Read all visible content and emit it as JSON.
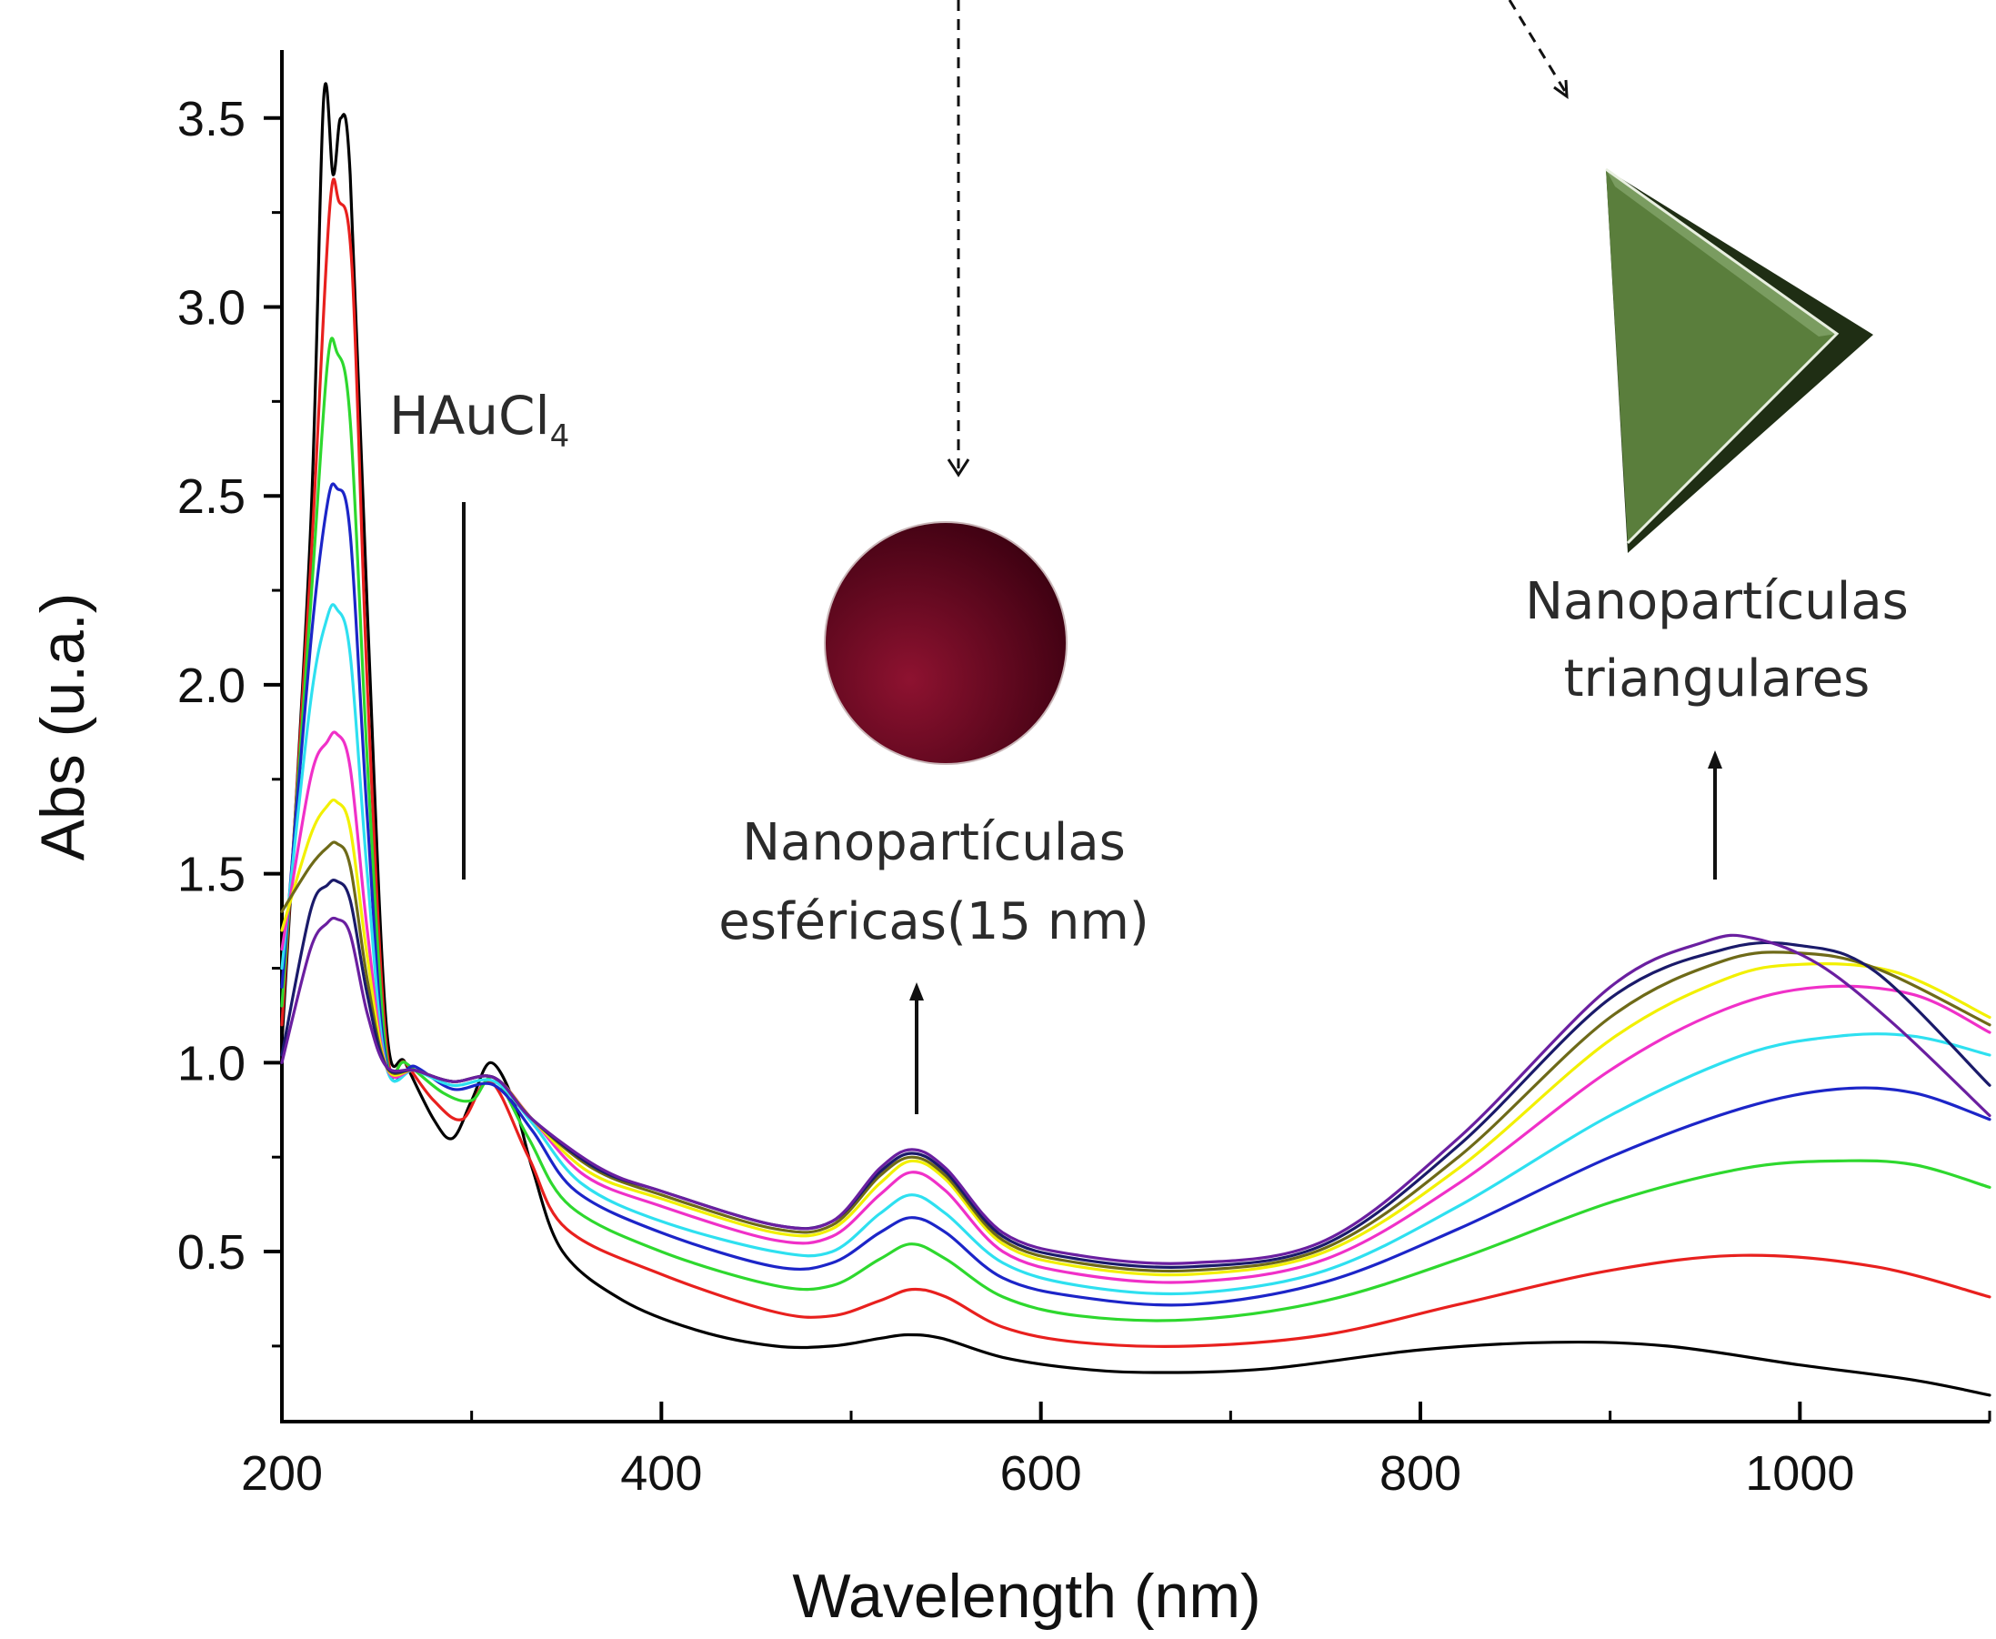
{
  "chart_data": {
    "type": "line",
    "xlabel": "Wavelength (nm)",
    "ylabel": "Abs (u.a.)",
    "xlim": [
      200,
      1100
    ],
    "ylim": [
      0.05,
      3.68
    ],
    "x_ticks": [
      200,
      400,
      600,
      800,
      1000
    ],
    "x_tick_labels": [
      "200",
      "400",
      "600",
      "800",
      "1000"
    ],
    "x_minor_ticks": [
      300,
      500,
      700,
      900,
      1100
    ],
    "y_ticks": [
      0.5,
      1.0,
      1.5,
      2.0,
      2.5,
      3.0,
      3.5
    ],
    "y_tick_labels": [
      "0.5",
      "1.0",
      "1.5",
      "2.0",
      "2.5",
      "3.0",
      "3.5"
    ],
    "y_minor_ticks": [
      0.25,
      0.75,
      1.25,
      1.75,
      2.25,
      2.75,
      3.25
    ],
    "grid": false,
    "legend": "none",
    "colors": {
      "sphere_dark": "#3a0010",
      "sphere_light": "#8e1230",
      "triangle_face": "#5a7e3c",
      "triangle_dark": "#1f2e14",
      "triangle_light": "#7a9c60"
    },
    "series": [
      {
        "color": "#000000",
        "values": [
          [
            200,
            1.05
          ],
          [
            215,
            2.4
          ],
          [
            222,
            3.55
          ],
          [
            227,
            3.35
          ],
          [
            231,
            3.5
          ],
          [
            236,
            3.35
          ],
          [
            245,
            2.2
          ],
          [
            255,
            1.1
          ],
          [
            265,
            1.0
          ],
          [
            280,
            0.85
          ],
          [
            290,
            0.8
          ],
          [
            300,
            0.9
          ],
          [
            310,
            1.0
          ],
          [
            322,
            0.9
          ],
          [
            332,
            0.72
          ],
          [
            348,
            0.5
          ],
          [
            380,
            0.37
          ],
          [
            420,
            0.29
          ],
          [
            460,
            0.25
          ],
          [
            490,
            0.25
          ],
          [
            515,
            0.27
          ],
          [
            530,
            0.28
          ],
          [
            548,
            0.27
          ],
          [
            580,
            0.22
          ],
          [
            620,
            0.19
          ],
          [
            660,
            0.18
          ],
          [
            720,
            0.19
          ],
          [
            800,
            0.24
          ],
          [
            870,
            0.26
          ],
          [
            930,
            0.25
          ],
          [
            1000,
            0.2
          ],
          [
            1060,
            0.16
          ],
          [
            1100,
            0.12
          ]
        ]
      },
      {
        "color": "#e8201e",
        "values": [
          [
            200,
            1.1
          ],
          [
            215,
            2.3
          ],
          [
            225,
            3.25
          ],
          [
            230,
            3.28
          ],
          [
            237,
            3.1
          ],
          [
            245,
            2.0
          ],
          [
            255,
            1.05
          ],
          [
            265,
            1.0
          ],
          [
            280,
            0.9
          ],
          [
            295,
            0.85
          ],
          [
            310,
            0.95
          ],
          [
            330,
            0.75
          ],
          [
            350,
            0.56
          ],
          [
            400,
            0.44
          ],
          [
            460,
            0.34
          ],
          [
            490,
            0.33
          ],
          [
            515,
            0.37
          ],
          [
            532,
            0.4
          ],
          [
            550,
            0.38
          ],
          [
            580,
            0.3
          ],
          [
            620,
            0.26
          ],
          [
            680,
            0.25
          ],
          [
            750,
            0.28
          ],
          [
            820,
            0.36
          ],
          [
            900,
            0.45
          ],
          [
            970,
            0.49
          ],
          [
            1040,
            0.46
          ],
          [
            1100,
            0.38
          ]
        ]
      },
      {
        "color": "#2ed82e",
        "values": [
          [
            200,
            1.15
          ],
          [
            215,
            2.2
          ],
          [
            224,
            2.85
          ],
          [
            229,
            2.88
          ],
          [
            236,
            2.7
          ],
          [
            245,
            1.8
          ],
          [
            255,
            1.02
          ],
          [
            265,
            1.0
          ],
          [
            285,
            0.92
          ],
          [
            300,
            0.9
          ],
          [
            312,
            0.96
          ],
          [
            330,
            0.8
          ],
          [
            352,
            0.62
          ],
          [
            400,
            0.5
          ],
          [
            460,
            0.41
          ],
          [
            490,
            0.41
          ],
          [
            515,
            0.48
          ],
          [
            532,
            0.52
          ],
          [
            550,
            0.48
          ],
          [
            580,
            0.38
          ],
          [
            620,
            0.33
          ],
          [
            680,
            0.32
          ],
          [
            750,
            0.37
          ],
          [
            820,
            0.48
          ],
          [
            900,
            0.63
          ],
          [
            970,
            0.72
          ],
          [
            1020,
            0.74
          ],
          [
            1060,
            0.73
          ],
          [
            1100,
            0.67
          ]
        ]
      },
      {
        "color": "#1c25c8",
        "values": [
          [
            200,
            1.2
          ],
          [
            215,
            2.1
          ],
          [
            224,
            2.48
          ],
          [
            229,
            2.52
          ],
          [
            236,
            2.4
          ],
          [
            245,
            1.65
          ],
          [
            255,
            1.0
          ],
          [
            270,
            0.99
          ],
          [
            290,
            0.93
          ],
          [
            312,
            0.94
          ],
          [
            332,
            0.82
          ],
          [
            355,
            0.66
          ],
          [
            400,
            0.55
          ],
          [
            460,
            0.46
          ],
          [
            490,
            0.47
          ],
          [
            515,
            0.55
          ],
          [
            532,
            0.59
          ],
          [
            550,
            0.55
          ],
          [
            580,
            0.43
          ],
          [
            620,
            0.38
          ],
          [
            680,
            0.36
          ],
          [
            750,
            0.42
          ],
          [
            820,
            0.56
          ],
          [
            900,
            0.75
          ],
          [
            970,
            0.88
          ],
          [
            1020,
            0.93
          ],
          [
            1060,
            0.92
          ],
          [
            1100,
            0.85
          ]
        ]
      },
      {
        "color": "#2ee0f0",
        "values": [
          [
            200,
            1.25
          ],
          [
            215,
            1.95
          ],
          [
            224,
            2.18
          ],
          [
            229,
            2.2
          ],
          [
            236,
            2.08
          ],
          [
            245,
            1.5
          ],
          [
            255,
            0.99
          ],
          [
            270,
            0.98
          ],
          [
            290,
            0.94
          ],
          [
            312,
            0.95
          ],
          [
            332,
            0.84
          ],
          [
            358,
            0.68
          ],
          [
            400,
            0.58
          ],
          [
            460,
            0.5
          ],
          [
            490,
            0.5
          ],
          [
            515,
            0.6
          ],
          [
            532,
            0.65
          ],
          [
            550,
            0.6
          ],
          [
            580,
            0.47
          ],
          [
            620,
            0.41
          ],
          [
            680,
            0.39
          ],
          [
            750,
            0.45
          ],
          [
            820,
            0.62
          ],
          [
            900,
            0.86
          ],
          [
            970,
            1.02
          ],
          [
            1020,
            1.07
          ],
          [
            1060,
            1.07
          ],
          [
            1100,
            1.02
          ]
        ]
      },
      {
        "color": "#f030c8",
        "values": [
          [
            200,
            1.3
          ],
          [
            215,
            1.75
          ],
          [
            224,
            1.85
          ],
          [
            229,
            1.87
          ],
          [
            236,
            1.78
          ],
          [
            245,
            1.35
          ],
          [
            255,
            0.99
          ],
          [
            270,
            0.98
          ],
          [
            290,
            0.95
          ],
          [
            312,
            0.96
          ],
          [
            332,
            0.85
          ],
          [
            360,
            0.7
          ],
          [
            400,
            0.62
          ],
          [
            460,
            0.53
          ],
          [
            490,
            0.54
          ],
          [
            515,
            0.65
          ],
          [
            532,
            0.71
          ],
          [
            550,
            0.66
          ],
          [
            580,
            0.5
          ],
          [
            620,
            0.44
          ],
          [
            680,
            0.42
          ],
          [
            750,
            0.48
          ],
          [
            820,
            0.68
          ],
          [
            900,
            0.98
          ],
          [
            960,
            1.14
          ],
          [
            1010,
            1.2
          ],
          [
            1060,
            1.18
          ],
          [
            1100,
            1.08
          ]
        ]
      },
      {
        "color": "#f2f000",
        "values": [
          [
            200,
            1.35
          ],
          [
            215,
            1.6
          ],
          [
            224,
            1.68
          ],
          [
            229,
            1.69
          ],
          [
            236,
            1.62
          ],
          [
            245,
            1.28
          ],
          [
            255,
            0.99
          ],
          [
            270,
            0.98
          ],
          [
            290,
            0.95
          ],
          [
            312,
            0.96
          ],
          [
            332,
            0.85
          ],
          [
            362,
            0.71
          ],
          [
            400,
            0.64
          ],
          [
            460,
            0.55
          ],
          [
            490,
            0.56
          ],
          [
            515,
            0.68
          ],
          [
            532,
            0.74
          ],
          [
            550,
            0.69
          ],
          [
            580,
            0.52
          ],
          [
            620,
            0.46
          ],
          [
            680,
            0.44
          ],
          [
            750,
            0.5
          ],
          [
            820,
            0.72
          ],
          [
            900,
            1.06
          ],
          [
            960,
            1.22
          ],
          [
            1000,
            1.26
          ],
          [
            1050,
            1.24
          ],
          [
            1100,
            1.12
          ]
        ]
      },
      {
        "color": "#6e6a18",
        "values": [
          [
            200,
            1.4
          ],
          [
            215,
            1.52
          ],
          [
            224,
            1.57
          ],
          [
            229,
            1.58
          ],
          [
            236,
            1.52
          ],
          [
            245,
            1.22
          ],
          [
            255,
            0.99
          ],
          [
            270,
            0.98
          ],
          [
            290,
            0.95
          ],
          [
            312,
            0.96
          ],
          [
            332,
            0.85
          ],
          [
            364,
            0.72
          ],
          [
            400,
            0.65
          ],
          [
            460,
            0.56
          ],
          [
            490,
            0.57
          ],
          [
            515,
            0.7
          ],
          [
            532,
            0.75
          ],
          [
            550,
            0.7
          ],
          [
            580,
            0.53
          ],
          [
            620,
            0.47
          ],
          [
            680,
            0.45
          ],
          [
            750,
            0.51
          ],
          [
            820,
            0.75
          ],
          [
            900,
            1.12
          ],
          [
            960,
            1.27
          ],
          [
            1000,
            1.29
          ],
          [
            1040,
            1.25
          ],
          [
            1100,
            1.1
          ]
        ]
      },
      {
        "color": "#1a1a6a",
        "values": [
          [
            200,
            1.02
          ],
          [
            215,
            1.4
          ],
          [
            224,
            1.47
          ],
          [
            229,
            1.48
          ],
          [
            236,
            1.43
          ],
          [
            245,
            1.18
          ],
          [
            255,
            0.99
          ],
          [
            270,
            0.98
          ],
          [
            290,
            0.95
          ],
          [
            312,
            0.96
          ],
          [
            332,
            0.85
          ],
          [
            366,
            0.72
          ],
          [
            400,
            0.66
          ],
          [
            460,
            0.57
          ],
          [
            490,
            0.58
          ],
          [
            515,
            0.71
          ],
          [
            532,
            0.76
          ],
          [
            550,
            0.71
          ],
          [
            580,
            0.54
          ],
          [
            620,
            0.48
          ],
          [
            680,
            0.46
          ],
          [
            750,
            0.52
          ],
          [
            820,
            0.78
          ],
          [
            900,
            1.17
          ],
          [
            960,
            1.3
          ],
          [
            1000,
            1.31
          ],
          [
            1040,
            1.24
          ],
          [
            1100,
            0.94
          ]
        ]
      },
      {
        "color": "#6a1fa0",
        "values": [
          [
            200,
            1.0
          ],
          [
            215,
            1.3
          ],
          [
            224,
            1.37
          ],
          [
            229,
            1.38
          ],
          [
            236,
            1.34
          ],
          [
            245,
            1.13
          ],
          [
            255,
            0.99
          ],
          [
            270,
            0.98
          ],
          [
            290,
            0.95
          ],
          [
            312,
            0.96
          ],
          [
            332,
            0.85
          ],
          [
            368,
            0.72
          ],
          [
            400,
            0.66
          ],
          [
            460,
            0.57
          ],
          [
            490,
            0.58
          ],
          [
            515,
            0.72
          ],
          [
            532,
            0.77
          ],
          [
            550,
            0.72
          ],
          [
            580,
            0.55
          ],
          [
            620,
            0.49
          ],
          [
            680,
            0.47
          ],
          [
            750,
            0.53
          ],
          [
            820,
            0.8
          ],
          [
            900,
            1.2
          ],
          [
            950,
            1.32
          ],
          [
            975,
            1.33
          ],
          [
            1010,
            1.26
          ],
          [
            1050,
            1.1
          ],
          [
            1100,
            0.86
          ]
        ]
      }
    ],
    "annotations": {
      "hauCl4_main": "HAuCl",
      "hauCl4_sub": "4",
      "spheres_line1": "Nanopartículas",
      "spheres_line2": "esféricas(15 nm)",
      "triangles_line1": "Nanopartículas",
      "triangles_line2": "triangulares"
    }
  }
}
